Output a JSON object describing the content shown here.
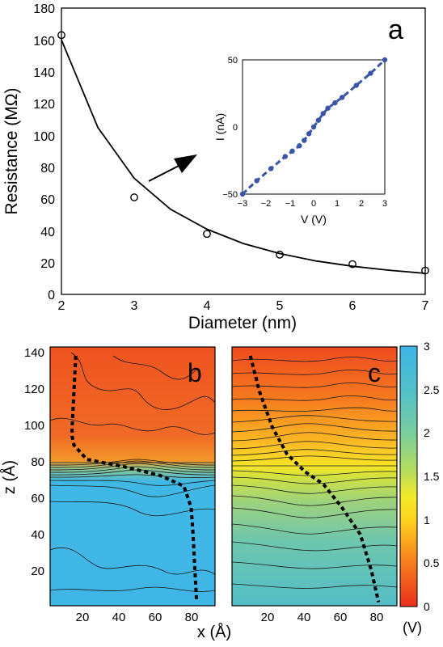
{
  "panel_a": {
    "label": "a",
    "xlabel": "Diameter (nm)",
    "ylabel": "Resistance (MΩ)",
    "xticks": [
      "2",
      "3",
      "4",
      "5",
      "6",
      "7"
    ],
    "yticks": [
      "0",
      "20",
      "40",
      "60",
      "80",
      "100",
      "120",
      "140",
      "160",
      "180"
    ]
  },
  "inset": {
    "xlabel": "V (V)",
    "ylabel": "I (nA)",
    "xticks": [
      "−3",
      "−2",
      "−1",
      "0",
      "1",
      "2",
      "3"
    ],
    "yticks": [
      "−50",
      "0",
      "50"
    ]
  },
  "panel_b": {
    "label": "b"
  },
  "panel_c": {
    "label": "c"
  },
  "bottom": {
    "ylabel": "z (Å)",
    "xlabel": "x (Å)",
    "yticks": [
      "20",
      "40",
      "60",
      "80",
      "100",
      "120",
      "140"
    ],
    "xticks": [
      "20",
      "40",
      "60",
      "80"
    ]
  },
  "colorbar": {
    "unit": "(V)",
    "ticks": [
      "0",
      "0.5",
      "1",
      "1.5",
      "2",
      "2.5",
      "3"
    ]
  },
  "colors": {
    "inset_points": "#3a55a8",
    "potential_low": "#e8431c",
    "potential_high": "#3fb6e6"
  },
  "chart_data": [
    {
      "type": "scatter",
      "panel": "a",
      "xlabel": "Diameter (nm)",
      "ylabel": "Resistance (MΩ)",
      "xlim": [
        2,
        7
      ],
      "ylim": [
        0,
        180
      ],
      "series": [
        {
          "marker": "open-circle",
          "x": [
            2,
            3,
            4,
            5,
            6,
            7
          ],
          "y": [
            163,
            61,
            38,
            25,
            19,
            15
          ]
        },
        {
          "line": "fit",
          "x": [
            2,
            2.5,
            3,
            3.5,
            4,
            4.5,
            5,
            5.5,
            6,
            6.5,
            7
          ],
          "y": [
            160,
            105,
            73,
            53.5,
            41,
            32,
            25.7,
            21,
            17.7,
            15.2,
            13.2
          ]
        }
      ]
    },
    {
      "type": "line",
      "panel": "inset",
      "xlabel": "V (V)",
      "ylabel": "I (nA)",
      "xlim": [
        -3,
        3
      ],
      "ylim": [
        -50,
        50
      ],
      "series": [
        {
          "style": "dashed-with-markers",
          "x": [
            -3,
            -2.4,
            -1.8,
            -1.2,
            -0.9,
            -0.6,
            -0.4,
            -0.2,
            0,
            0.2,
            0.4,
            0.6,
            0.9,
            1.2,
            1.8,
            2.4,
            3
          ],
          "y": [
            -50,
            -40,
            -31,
            -22,
            -18,
            -14,
            -10,
            -5,
            0,
            5,
            10,
            14,
            18,
            22,
            31,
            40,
            50
          ]
        }
      ]
    },
    {
      "type": "heatmap",
      "panel": "b",
      "xlabel": "x (Å)",
      "ylabel": "z (Å)",
      "xlim": [
        0,
        90
      ],
      "ylim": [
        0,
        145
      ],
      "potential_V": {
        "z_above_interface": 0,
        "z_below_interface": 3
      },
      "interface_z": [
        68,
        78
      ],
      "trajectory": {
        "x": [
          14,
          13,
          12,
          12,
          13,
          20,
          40,
          60,
          73,
          77,
          78,
          79,
          80
        ],
        "z": [
          140,
          120,
          100,
          95,
          90,
          82,
          78,
          73,
          67,
          55,
          40,
          20,
          2
        ]
      }
    },
    {
      "type": "heatmap",
      "panel": "c",
      "xlabel": "x (Å)",
      "ylabel": "z (Å)",
      "xlim": [
        0,
        90
      ],
      "ylim": [
        0,
        145
      ],
      "potential_V": {
        "z_top": 0.1,
        "z_interface": 0.9,
        "z_bottom": 2.3
      },
      "trajectory": {
        "x": [
          10,
          15,
          22,
          30,
          40,
          50,
          60,
          70,
          76,
          80
        ],
        "z": [
          140,
          120,
          100,
          85,
          75,
          68,
          55,
          40,
          20,
          2
        ]
      }
    }
  ]
}
